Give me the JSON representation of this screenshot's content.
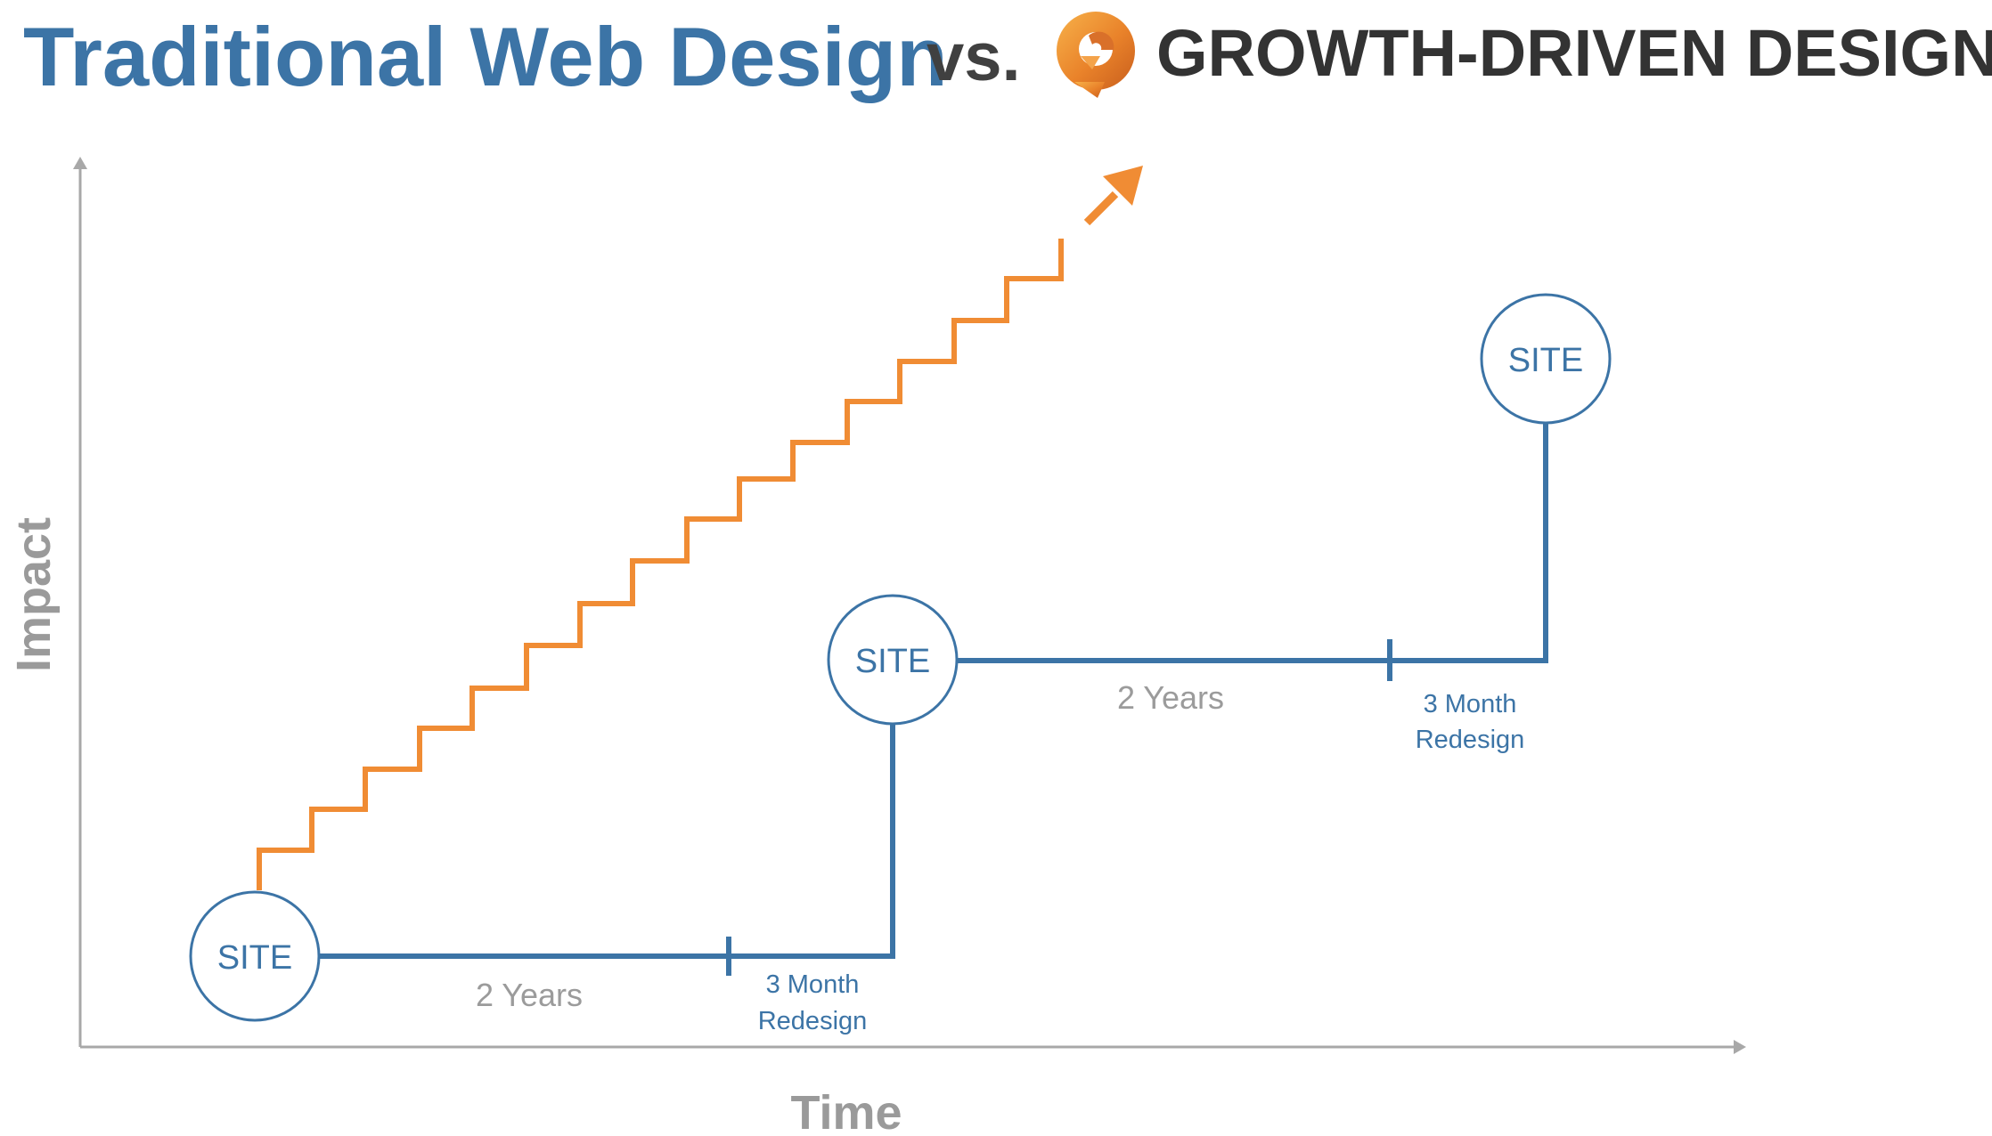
{
  "header": {
    "title_left": "Traditional Web Design",
    "vs": "vs.",
    "brand": "GROWTH-DRIVEN DESIGN",
    "logo_icon": "growth-driven-design-logo"
  },
  "axes": {
    "x_label": "Time",
    "y_label": "Impact"
  },
  "traditional": {
    "sites": [
      "SITE",
      "SITE",
      "SITE"
    ],
    "years_labels": [
      "2 Years",
      "2 Years"
    ],
    "redesign_labels": [
      [
        "3 Month",
        "Redesign"
      ],
      [
        "3 Month",
        "Redesign"
      ]
    ]
  },
  "colors": {
    "traditional_blue": "#3c74a6",
    "growth_orange": "#f08c34",
    "axis_gray": "#9a9a9a",
    "years_gray": "#9b9b9b",
    "brand_dark": "#333333"
  }
}
